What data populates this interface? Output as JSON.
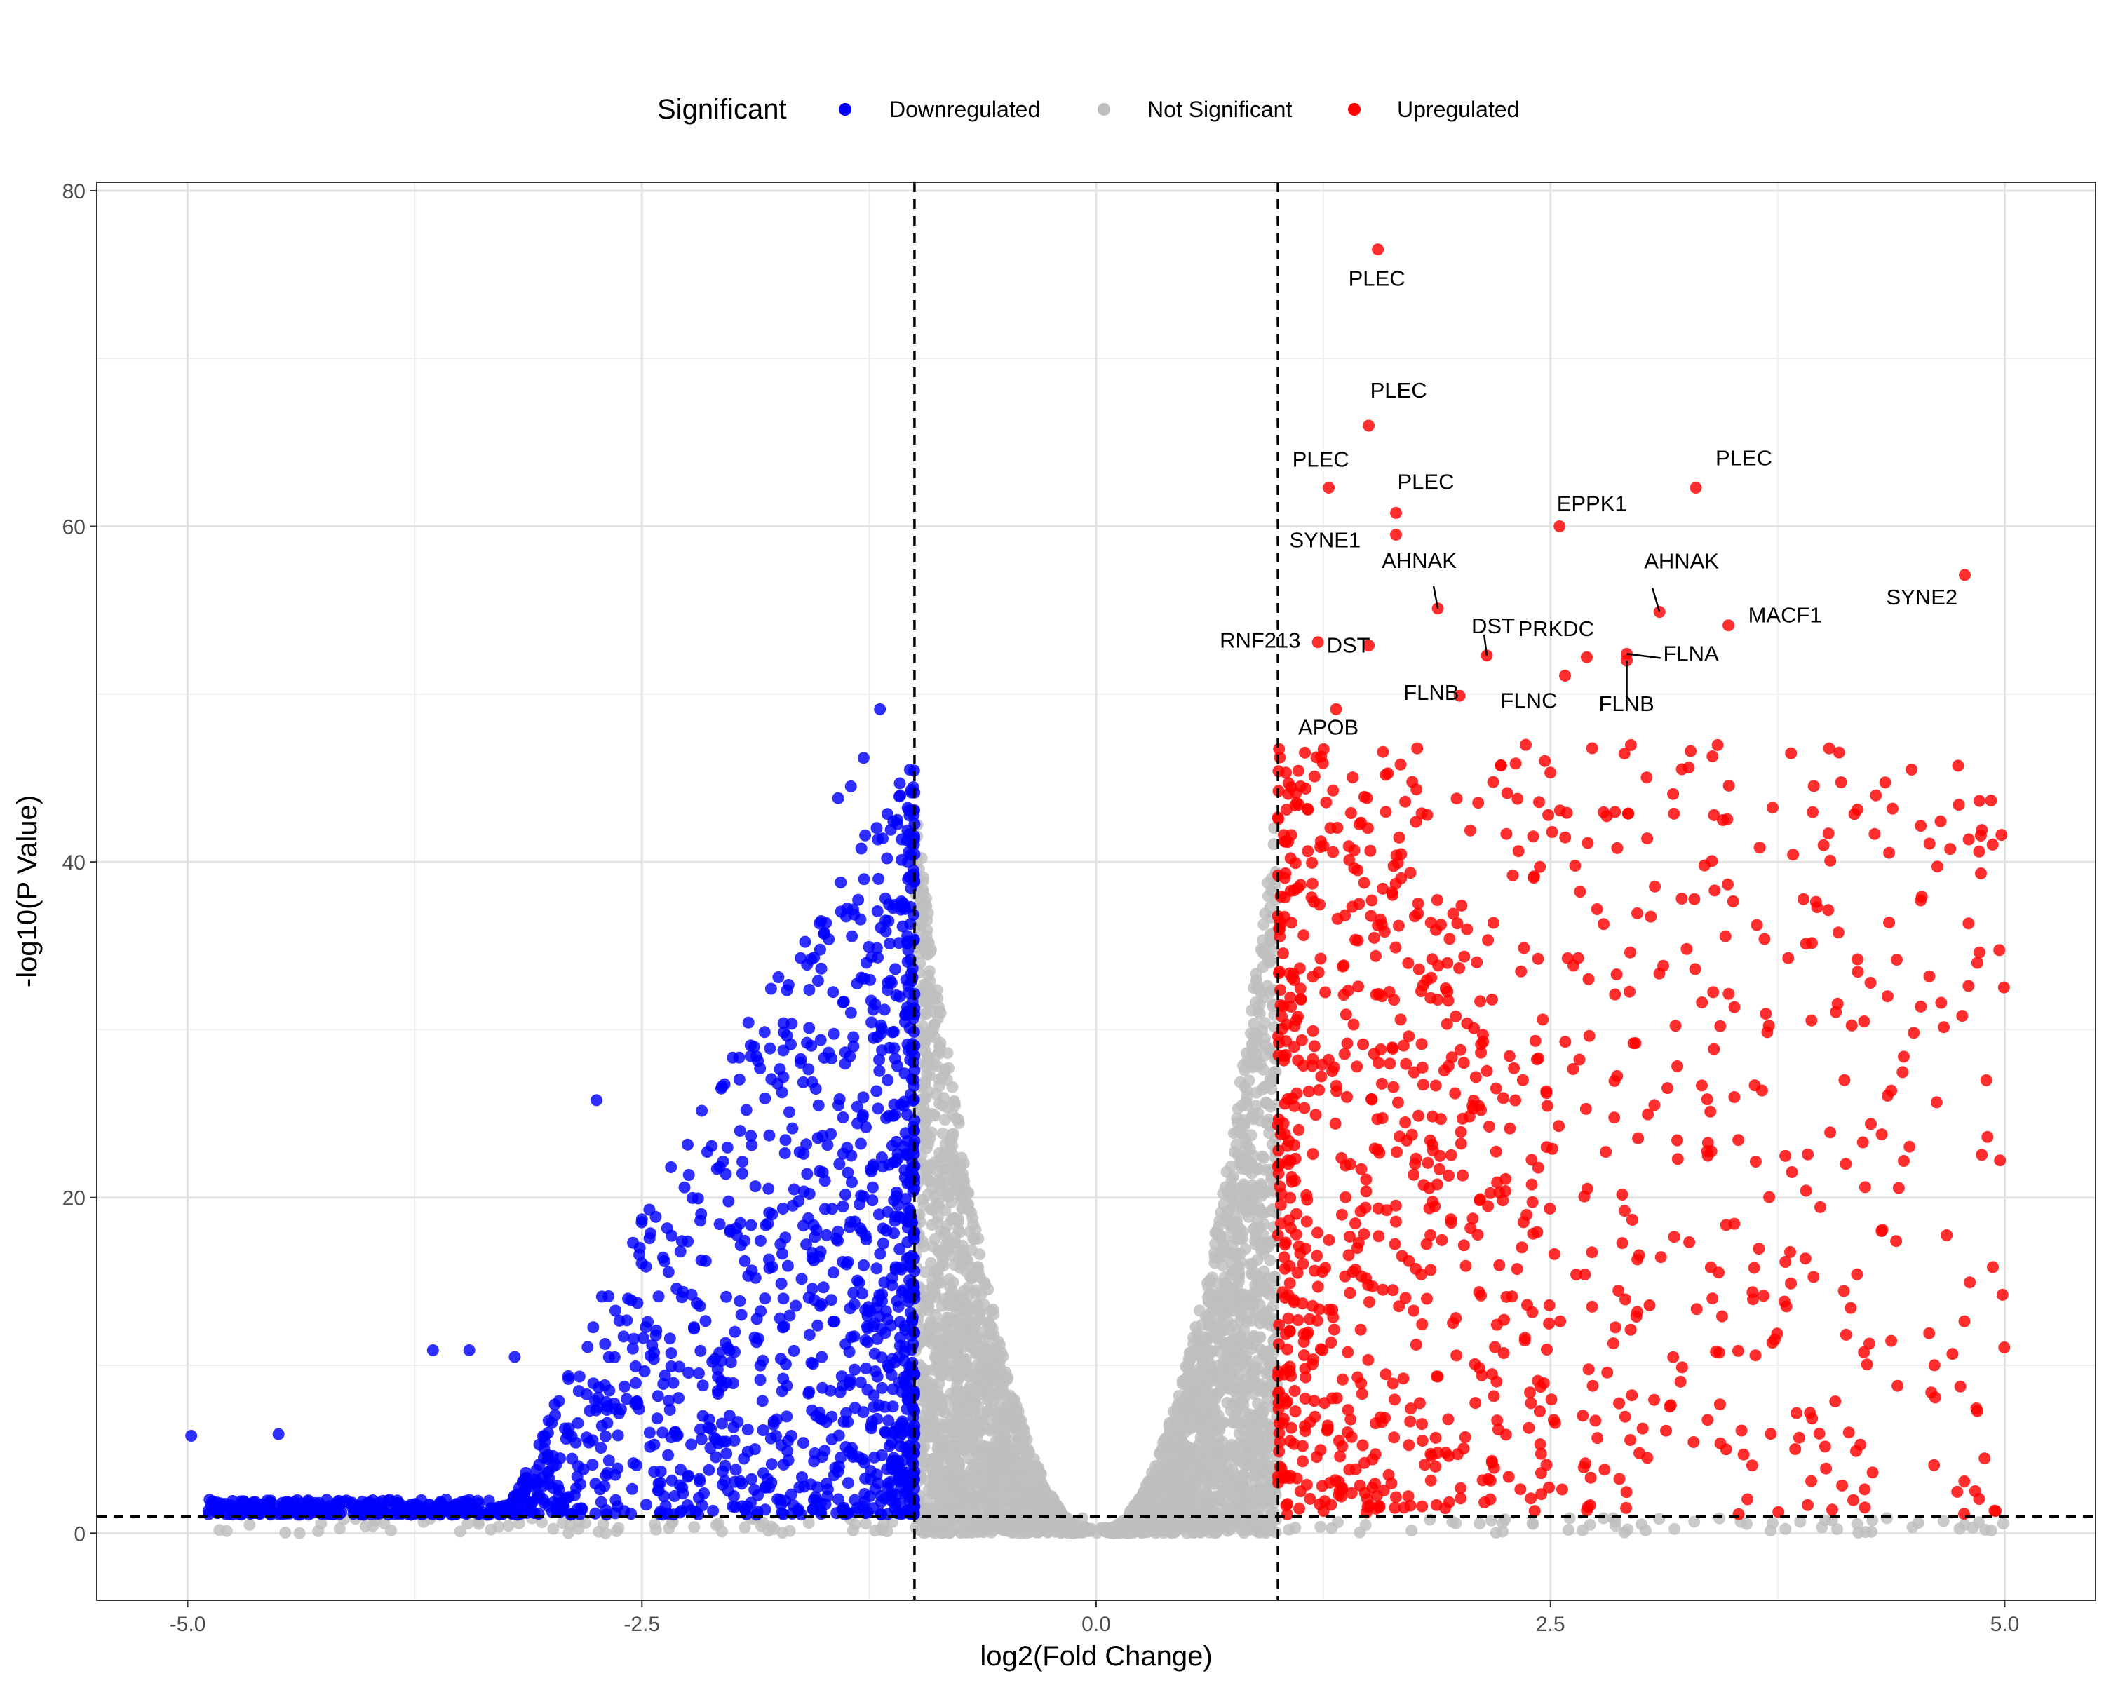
{
  "chart_data": {
    "type": "scatter",
    "title": "",
    "xlabel": "log2(Fold Change)",
    "ylabel": "-log10(P Value)",
    "xlim": [
      -5.5,
      5.5
    ],
    "ylim": [
      -4,
      80.5
    ],
    "x_ticks": [
      -5.0,
      -2.5,
      0.0,
      2.5,
      5.0
    ],
    "x_tick_labels": [
      "-5.0",
      "-2.5",
      "0.0",
      "2.5",
      "5.0"
    ],
    "y_ticks": [
      0,
      20,
      40,
      60,
      80
    ],
    "y_tick_labels": [
      "0",
      "20",
      "40",
      "60",
      "80"
    ],
    "grid": true,
    "legend_position": "top",
    "legend_title": "Significant",
    "series": [
      {
        "name": "Downregulated",
        "color": "#0000FF"
      },
      {
        "name": "Not Significant",
        "color": "#BEBEBE"
      },
      {
        "name": "Upregulated",
        "color": "#FF0000"
      }
    ],
    "thresholds": {
      "fold_change_x": [
        -1,
        1
      ],
      "pvalue_y": 1
    },
    "labeled_points": [
      {
        "label": "PLEC",
        "x": 1.55,
        "y": 76.5
      },
      {
        "label": "PLEC",
        "x": 1.5,
        "y": 66
      },
      {
        "label": "PLEC",
        "x": 1.28,
        "y": 62.3
      },
      {
        "label": "PLEC",
        "x": 1.65,
        "y": 60.8
      },
      {
        "label": "PLEC",
        "x": 3.3,
        "y": 62.3
      },
      {
        "label": "SYNE1",
        "x": 1.65,
        "y": 59.5
      },
      {
        "label": "EPPK1",
        "x": 2.55,
        "y": 60
      },
      {
        "label": "AHNAK",
        "x": 1.88,
        "y": 55.1
      },
      {
        "label": "AHNAK",
        "x": 3.1,
        "y": 54.9
      },
      {
        "label": "SYNE2",
        "x": 4.78,
        "y": 57.1
      },
      {
        "label": "MACF1",
        "x": 3.48,
        "y": 54.1
      },
      {
        "label": "RNF213",
        "x": 1.22,
        "y": 53.1
      },
      {
        "label": "DST",
        "x": 1.5,
        "y": 52.9
      },
      {
        "label": "DST",
        "x": 2.15,
        "y": 52.3
      },
      {
        "label": "PRKDC",
        "x": 2.7,
        "y": 52.2
      },
      {
        "label": "FLNA",
        "x": 2.92,
        "y": 52.4
      },
      {
        "label": "FLNB",
        "x": 2.0,
        "y": 49.9
      },
      {
        "label": "FLNB",
        "x": 2.92,
        "y": 52.0
      },
      {
        "label": "FLNC",
        "x": 2.58,
        "y": 51.1
      },
      {
        "label": "APOB",
        "x": 1.32,
        "y": 49.1
      }
    ]
  }
}
